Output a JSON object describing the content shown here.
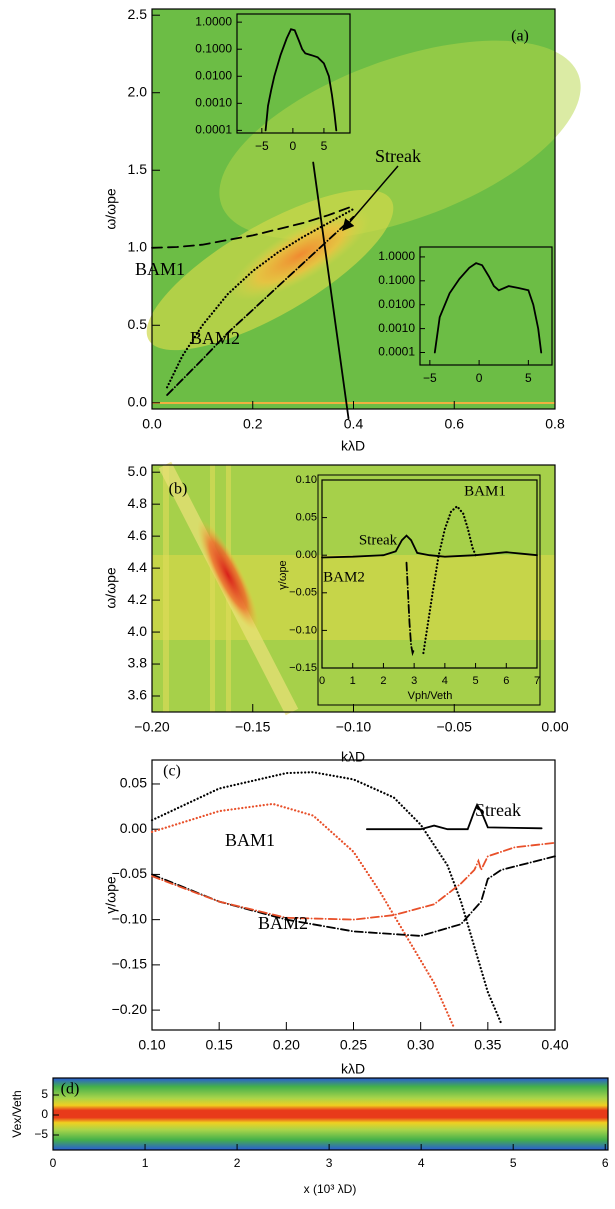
{
  "chart_data": [
    {
      "type": "line",
      "panel_label": "(a)",
      "xlabel": "kλD",
      "ylabel": "ω/ωpe",
      "xlim": [
        0,
        0.8
      ],
      "ylim": [
        -0.04,
        2.54
      ],
      "xticks": [
        {
          "value": 0,
          "label": "0.0"
        },
        0.2,
        0.4,
        0.6,
        0.8
      ],
      "yticks": [
        {
          "value": 0,
          "label": "0.0"
        },
        0.5,
        {
          "value": 1,
          "label": "1.0"
        },
        1.5,
        {
          "value": 2,
          "label": "2.0"
        },
        2.5
      ],
      "annotations": [
        "Streak",
        "BAM1",
        "BAM2"
      ],
      "series": [
        {
          "style": "dashed",
          "color": "#000000",
          "x": [
            0,
            0.05,
            0.1,
            0.15,
            0.2,
            0.25,
            0.3,
            0.35,
            0.4
          ],
          "values": [
            1.0,
            1.005,
            1.02,
            1.05,
            1.08,
            1.12,
            1.16,
            1.21,
            1.27
          ]
        },
        {
          "style": "dotted",
          "color": "#000000",
          "x": [
            0.03,
            0.06,
            0.1,
            0.15,
            0.2,
            0.25,
            0.3,
            0.35,
            0.4
          ],
          "values": [
            0.1,
            0.3,
            0.5,
            0.7,
            0.85,
            0.97,
            1.07,
            1.16,
            1.25
          ]
        },
        {
          "style": "dashdot",
          "color": "#000000",
          "x": [
            0.03,
            0.1,
            0.15,
            0.2,
            0.25,
            0.3,
            0.35,
            0.4
          ],
          "values": [
            0.05,
            0.28,
            0.45,
            0.6,
            0.75,
            0.9,
            1.05,
            1.2
          ]
        },
        {
          "style": "solid",
          "color": "#000000",
          "x": [
            0.32,
            0.39
          ],
          "values": [
            1.55,
            -0.1
          ]
        }
      ]
    },
    {
      "type": "line",
      "log_y": true,
      "xlim": [
        -9,
        9.2
      ],
      "ylim": [
        8e-05,
        2
      ],
      "xticks": [
        {
          "value": -5,
          "label": "−5"
        },
        0,
        5
      ],
      "yticks": [
        {
          "value": 1,
          "label": "1.0000"
        },
        {
          "value": 0.1,
          "label": "0.1000"
        },
        {
          "value": 0.01,
          "label": "0.0100"
        },
        {
          "value": 0.001,
          "label": "0.0010"
        },
        {
          "value": 0.0001,
          "label": "0.0001"
        }
      ],
      "series": [
        {
          "style": "solid",
          "color": "#000000",
          "x": [
            -4.4,
            -4,
            -3.5,
            -3,
            -2,
            -1,
            -0.3,
            0.3,
            1,
            1.5,
            2,
            3,
            4,
            5,
            5.8,
            6.3,
            6.7,
            7
          ],
          "values": [
            0.0001,
            0.0008,
            0.003,
            0.01,
            0.06,
            0.25,
            0.55,
            0.5,
            0.2,
            0.1,
            0.07,
            0.06,
            0.05,
            0.03,
            0.01,
            0.002,
            0.0004,
            0.0001
          ]
        }
      ]
    },
    {
      "type": "line",
      "log_y": true,
      "xlim": [
        -6,
        7.4
      ],
      "ylim": [
        3e-05,
        2.6
      ],
      "xticks": [
        {
          "value": -5,
          "label": "−5"
        },
        0,
        5
      ],
      "yticks": [
        {
          "value": 1,
          "label": "1.0000"
        },
        {
          "value": 0.1,
          "label": "0.1000"
        },
        {
          "value": 0.01,
          "label": "0.0100"
        },
        {
          "value": 0.001,
          "label": "0.0010"
        },
        {
          "value": 0.0001,
          "label": "0.0001"
        }
      ],
      "series": [
        {
          "style": "solid",
          "color": "#000000",
          "x": [
            -4.5,
            -4,
            -3,
            -2,
            -1,
            -0.3,
            0.3,
            1,
            1.5,
            2,
            3,
            4,
            5,
            5.5,
            6,
            6.3
          ],
          "values": [
            0.0001,
            0.003,
            0.03,
            0.12,
            0.35,
            0.55,
            0.45,
            0.15,
            0.06,
            0.04,
            0.06,
            0.05,
            0.04,
            0.01,
            0.001,
            0.0001
          ]
        }
      ]
    },
    {
      "type": "heatmap",
      "panel_label": "(b)",
      "xlabel": "kλD",
      "ylabel": "ω/ωpe",
      "xlim": [
        -0.2,
        0
      ],
      "ylim": [
        3.5,
        5.045
      ],
      "xticks": [
        {
          "value": -0.2,
          "label": "−0.20"
        },
        {
          "value": -0.15,
          "label": "−0.15"
        },
        {
          "value": -0.1,
          "label": "−0.10"
        },
        {
          "value": -0.05,
          "label": "−0.05"
        },
        {
          "value": 0,
          "label": "0.00"
        }
      ],
      "yticks": [
        3.6,
        3.8,
        {
          "value": 4,
          "label": "4.0"
        },
        4.2,
        4.4,
        4.6,
        4.8,
        {
          "value": 5,
          "label": "5.0"
        }
      ]
    },
    {
      "type": "line",
      "xlabel": "Vph/Veth",
      "ylabel": "γ/ωpe",
      "xlim": [
        0,
        7
      ],
      "ylim": [
        -0.15,
        0.1
      ],
      "xticks": [
        0,
        1,
        2,
        3,
        4,
        5,
        6,
        7
      ],
      "yticks": [
        {
          "value": 0.1,
          "label": "0.10"
        },
        {
          "value": 0.05,
          "label": "0.05"
        },
        {
          "value": 0,
          "label": "0.00"
        },
        {
          "value": -0.05,
          "label": "−0.05"
        },
        {
          "value": -0.1,
          "label": "−0.10"
        },
        {
          "value": -0.15,
          "label": "−0.15"
        }
      ],
      "annotations": [
        "Streak",
        "BAM1",
        "BAM2"
      ],
      "series": [
        {
          "style": "solid",
          "color": "#000000",
          "x": [
            0,
            1,
            2,
            2.4,
            2.6,
            2.75,
            2.9,
            3.1,
            3.5,
            4,
            5,
            5.5,
            6,
            6.5,
            7
          ],
          "values": [
            -0.003,
            -0.002,
            0,
            0.005,
            0.02,
            0.026,
            0.02,
            0.003,
            0,
            -0.002,
            0,
            0.002,
            0.004,
            0.002,
            0
          ]
        },
        {
          "style": "dotted",
          "color": "#000000",
          "x": [
            3.3,
            3.45,
            3.6,
            3.8,
            4.0,
            4.2,
            4.4,
            4.6,
            4.75,
            4.9,
            5.0
          ],
          "values": [
            -0.13,
            -0.09,
            -0.05,
            0,
            0.035,
            0.058,
            0.065,
            0.055,
            0.035,
            0.01,
            0
          ]
        },
        {
          "style": "dashdot",
          "color": "#000000",
          "x": [
            2.75,
            2.8,
            2.85,
            2.9,
            2.95,
            3.0
          ],
          "values": [
            -0.01,
            -0.05,
            -0.09,
            -0.12,
            -0.13,
            -0.125
          ]
        }
      ]
    },
    {
      "type": "line",
      "panel_label": "(c)",
      "xlabel": "kλD",
      "ylabel": "γ/ωpe",
      "xlim": [
        0.1,
        0.4
      ],
      "ylim": [
        -0.222,
        0.0765
      ],
      "xticks": [
        {
          "value": 0.1,
          "label": "0.10"
        },
        0.15,
        {
          "value": 0.2,
          "label": "0.20"
        },
        0.25,
        {
          "value": 0.3,
          "label": "0.30"
        },
        0.35,
        {
          "value": 0.4,
          "label": "0.40"
        }
      ],
      "yticks": [
        0.05,
        {
          "value": 0,
          "label": "0.00"
        },
        {
          "value": -0.05,
          "label": "−0.05"
        },
        {
          "value": -0.1,
          "label": "−0.10"
        },
        {
          "value": -0.15,
          "label": "−0.15"
        },
        {
          "value": -0.2,
          "label": "−0.20"
        }
      ],
      "annotations": [
        "Streak",
        "BAM1",
        "BAM2"
      ],
      "series": [
        {
          "style": "dotted",
          "color": "#000000",
          "x": [
            0.1,
            0.15,
            0.2,
            0.22,
            0.25,
            0.28,
            0.3,
            0.32,
            0.33,
            0.34,
            0.35,
            0.36
          ],
          "values": [
            0.01,
            0.045,
            0.062,
            0.063,
            0.055,
            0.035,
            0.005,
            -0.04,
            -0.08,
            -0.13,
            -0.18,
            -0.215
          ]
        },
        {
          "style": "dotted",
          "color": "#e8502a",
          "x": [
            0.1,
            0.15,
            0.19,
            0.22,
            0.25,
            0.27,
            0.29,
            0.31,
            0.325
          ],
          "values": [
            -0.003,
            0.02,
            0.028,
            0.015,
            -0.025,
            -0.07,
            -0.12,
            -0.17,
            -0.22
          ]
        },
        {
          "style": "dashdot",
          "color": "#000000",
          "x": [
            0.1,
            0.15,
            0.2,
            0.25,
            0.3,
            0.33,
            0.345,
            0.35,
            0.36,
            0.4
          ],
          "values": [
            -0.05,
            -0.08,
            -0.1,
            -0.113,
            -0.118,
            -0.105,
            -0.08,
            -0.055,
            -0.045,
            -0.03
          ]
        },
        {
          "style": "dashdot",
          "color": "#e8502a",
          "x": [
            0.1,
            0.15,
            0.2,
            0.25,
            0.28,
            0.31,
            0.33,
            0.34,
            0.343,
            0.345,
            0.35,
            0.37,
            0.4
          ],
          "values": [
            -0.052,
            -0.08,
            -0.098,
            -0.1,
            -0.095,
            -0.083,
            -0.06,
            -0.045,
            -0.035,
            -0.045,
            -0.03,
            -0.02,
            -0.015
          ]
        },
        {
          "style": "solid",
          "color": "#000000",
          "x": [
            0.26,
            0.3,
            0.31,
            0.32,
            0.335,
            0.34,
            0.342,
            0.345,
            0.35,
            0.39
          ],
          "values": [
            0,
            0,
            0.004,
            0,
            0,
            0.02,
            0.027,
            0.02,
            0.002,
            0.001
          ]
        }
      ]
    },
    {
      "type": "heatmap",
      "panel_label": "(d)",
      "xlabel": "x (10³ λD)",
      "ylabel": "Vex/Veth",
      "xlim": [
        0,
        6.03
      ],
      "ylim": [
        -8.75,
        9.25
      ],
      "xticks": [
        0,
        1,
        2,
        3,
        4,
        5,
        6
      ],
      "yticks": [
        5,
        0,
        {
          "value": -5,
          "label": "−5"
        }
      ]
    }
  ]
}
